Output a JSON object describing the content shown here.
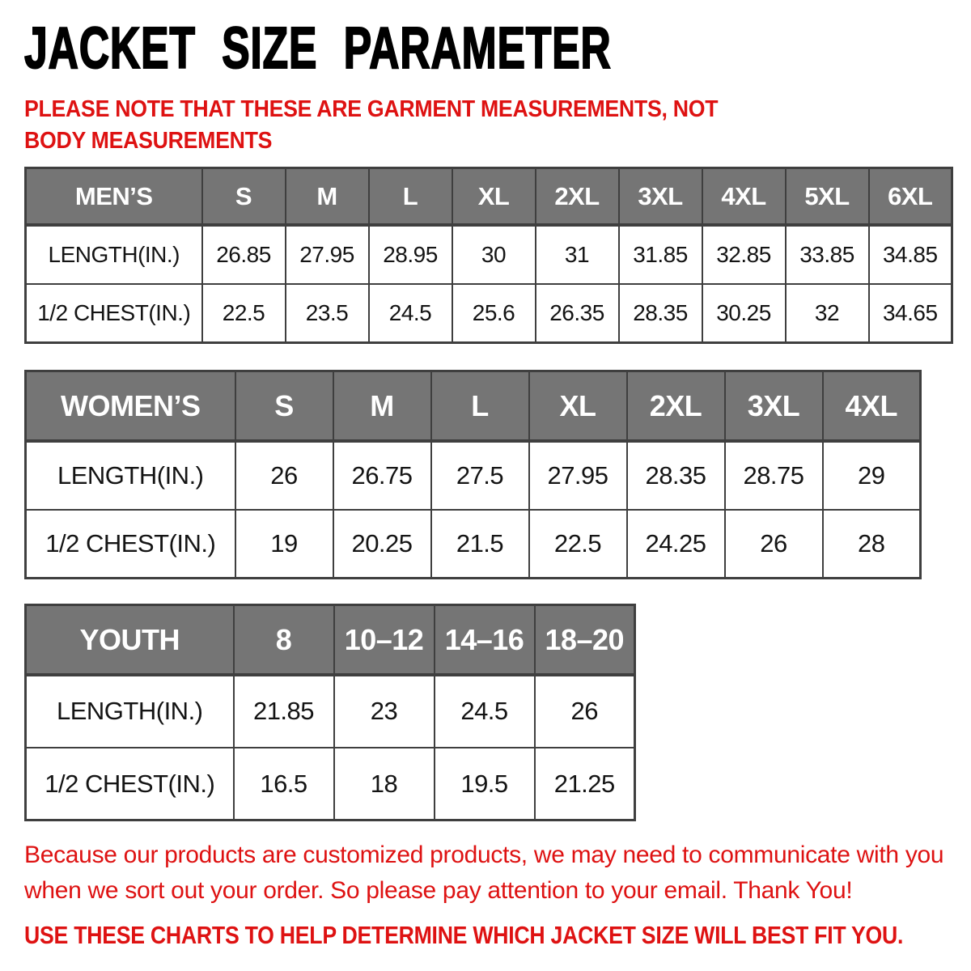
{
  "page_title": "JACKET SIZE PARAMETER",
  "note": "PLEASE NOTE THAT THESE ARE GARMENT MEASUREMENTS, NOT BODY MEASUREMENTS",
  "footer": {
    "paragraph": "Because our products are customized products, we may need to communicate with you when we sort out your order. So please pay attention to your email. Thank You!",
    "advice": "USE THESE CHARTS TO HELP DETERMINE WHICH JACKET SIZE WILL BEST FIT YOU."
  },
  "colors": {
    "accent_red": "#de1212",
    "header_gray": "#757575",
    "border_dark": "#3f3f3f"
  },
  "tables": [
    {
      "id": "mens",
      "name": "MEN’S",
      "sizes": [
        "S",
        "M",
        "L",
        "XL",
        "2XL",
        "3XL",
        "4XL",
        "5XL",
        "6XL"
      ],
      "rows": [
        {
          "label": "LENGTH(IN.)",
          "values": [
            "26.85",
            "27.95",
            "28.95",
            "30",
            "31",
            "31.85",
            "32.85",
            "33.85",
            "34.85"
          ]
        },
        {
          "label": "1/2 CHEST(IN.)",
          "values": [
            "22.5",
            "23.5",
            "24.5",
            "25.6",
            "26.35",
            "28.35",
            "30.25",
            "32",
            "34.65"
          ]
        }
      ]
    },
    {
      "id": "womens",
      "name": "WOMEN’S",
      "sizes": [
        "S",
        "M",
        "L",
        "XL",
        "2XL",
        "3XL",
        "4XL"
      ],
      "rows": [
        {
          "label": "LENGTH(IN.)",
          "values": [
            "26",
            "26.75",
            "27.5",
            "27.95",
            "28.35",
            "28.75",
            "29"
          ]
        },
        {
          "label": "1/2 CHEST(IN.)",
          "values": [
            "19",
            "20.25",
            "21.5",
            "22.5",
            "24.25",
            "26",
            "28"
          ]
        }
      ]
    },
    {
      "id": "youth",
      "name": "YOUTH",
      "sizes": [
        "8",
        "10–12",
        "14–16",
        "18–20"
      ],
      "rows": [
        {
          "label": "LENGTH(IN.)",
          "values": [
            "21.85",
            "23",
            "24.5",
            "26"
          ]
        },
        {
          "label": "1/2 CHEST(IN.)",
          "values": [
            "16.5",
            "18",
            "19.5",
            "21.25"
          ]
        }
      ]
    }
  ]
}
